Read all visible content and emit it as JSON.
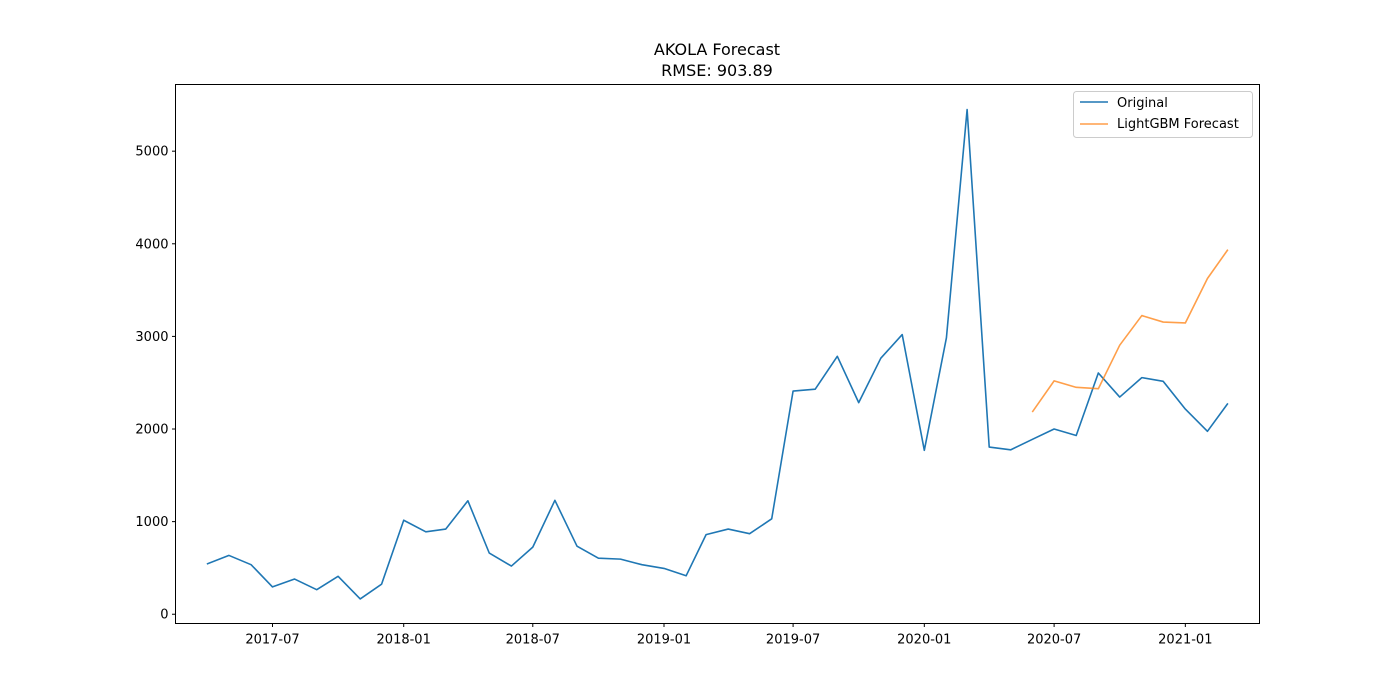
{
  "chart_data": {
    "type": "line",
    "title": "AKOLA Forecast",
    "subtitle": "RMSE: 903.89",
    "xlabel": "",
    "ylabel": "",
    "x_range": [
      "2017-02-15",
      "2021-04-15"
    ],
    "ylim": [
      -100,
      5720
    ],
    "y_ticks": [
      0,
      1000,
      2000,
      3000,
      4000,
      5000
    ],
    "x_ticks": [
      "2017-07",
      "2018-01",
      "2018-07",
      "2019-01",
      "2019-07",
      "2020-01",
      "2020-07",
      "2021-01"
    ],
    "grid": false,
    "legend": "top-right",
    "series": [
      {
        "name": "Original",
        "color": "#1f77b4",
        "points": [
          [
            "2017-04-01",
            545
          ],
          [
            "2017-05-01",
            635
          ],
          [
            "2017-06-01",
            535
          ],
          [
            "2017-07-01",
            295
          ],
          [
            "2017-08-01",
            380
          ],
          [
            "2017-09-01",
            265
          ],
          [
            "2017-10-01",
            410
          ],
          [
            "2017-11-01",
            165
          ],
          [
            "2017-12-01",
            325
          ],
          [
            "2018-01-01",
            1015
          ],
          [
            "2018-02-01",
            890
          ],
          [
            "2018-03-01",
            920
          ],
          [
            "2018-04-01",
            1225
          ],
          [
            "2018-05-01",
            660
          ],
          [
            "2018-06-01",
            520
          ],
          [
            "2018-07-01",
            725
          ],
          [
            "2018-08-01",
            1230
          ],
          [
            "2018-09-01",
            735
          ],
          [
            "2018-10-01",
            605
          ],
          [
            "2018-11-01",
            595
          ],
          [
            "2018-12-01",
            535
          ],
          [
            "2019-01-01",
            495
          ],
          [
            "2019-02-01",
            415
          ],
          [
            "2019-03-01",
            860
          ],
          [
            "2019-04-01",
            920
          ],
          [
            "2019-05-01",
            870
          ],
          [
            "2019-06-01",
            1030
          ],
          [
            "2019-07-01",
            2410
          ],
          [
            "2019-08-01",
            2430
          ],
          [
            "2019-09-01",
            2785
          ],
          [
            "2019-10-01",
            2285
          ],
          [
            "2019-11-01",
            2765
          ],
          [
            "2019-12-01",
            3020
          ],
          [
            "2020-01-01",
            1770
          ],
          [
            "2020-02-01",
            2985
          ],
          [
            "2020-03-01",
            5450
          ],
          [
            "2020-04-01",
            1805
          ],
          [
            "2020-05-01",
            1775
          ],
          [
            "2020-06-01",
            1890
          ],
          [
            "2020-07-01",
            2000
          ],
          [
            "2020-08-01",
            1930
          ],
          [
            "2020-09-01",
            2605
          ],
          [
            "2020-10-01",
            2345
          ],
          [
            "2020-11-01",
            2555
          ],
          [
            "2020-12-01",
            2515
          ],
          [
            "2021-01-01",
            2215
          ],
          [
            "2021-02-01",
            1975
          ],
          [
            "2021-03-01",
            2270
          ]
        ]
      },
      {
        "name": "LightGBM Forecast",
        "color": "#ff7f0e",
        "points": [
          [
            "2020-06-01",
            2190
          ],
          [
            "2020-07-01",
            2520
          ],
          [
            "2020-08-01",
            2450
          ],
          [
            "2020-09-01",
            2435
          ],
          [
            "2020-10-01",
            2905
          ],
          [
            "2020-11-01",
            3225
          ],
          [
            "2020-12-01",
            3155
          ],
          [
            "2021-01-01",
            3145
          ],
          [
            "2021-02-01",
            3625
          ],
          [
            "2021-03-01",
            3930
          ]
        ]
      }
    ]
  }
}
